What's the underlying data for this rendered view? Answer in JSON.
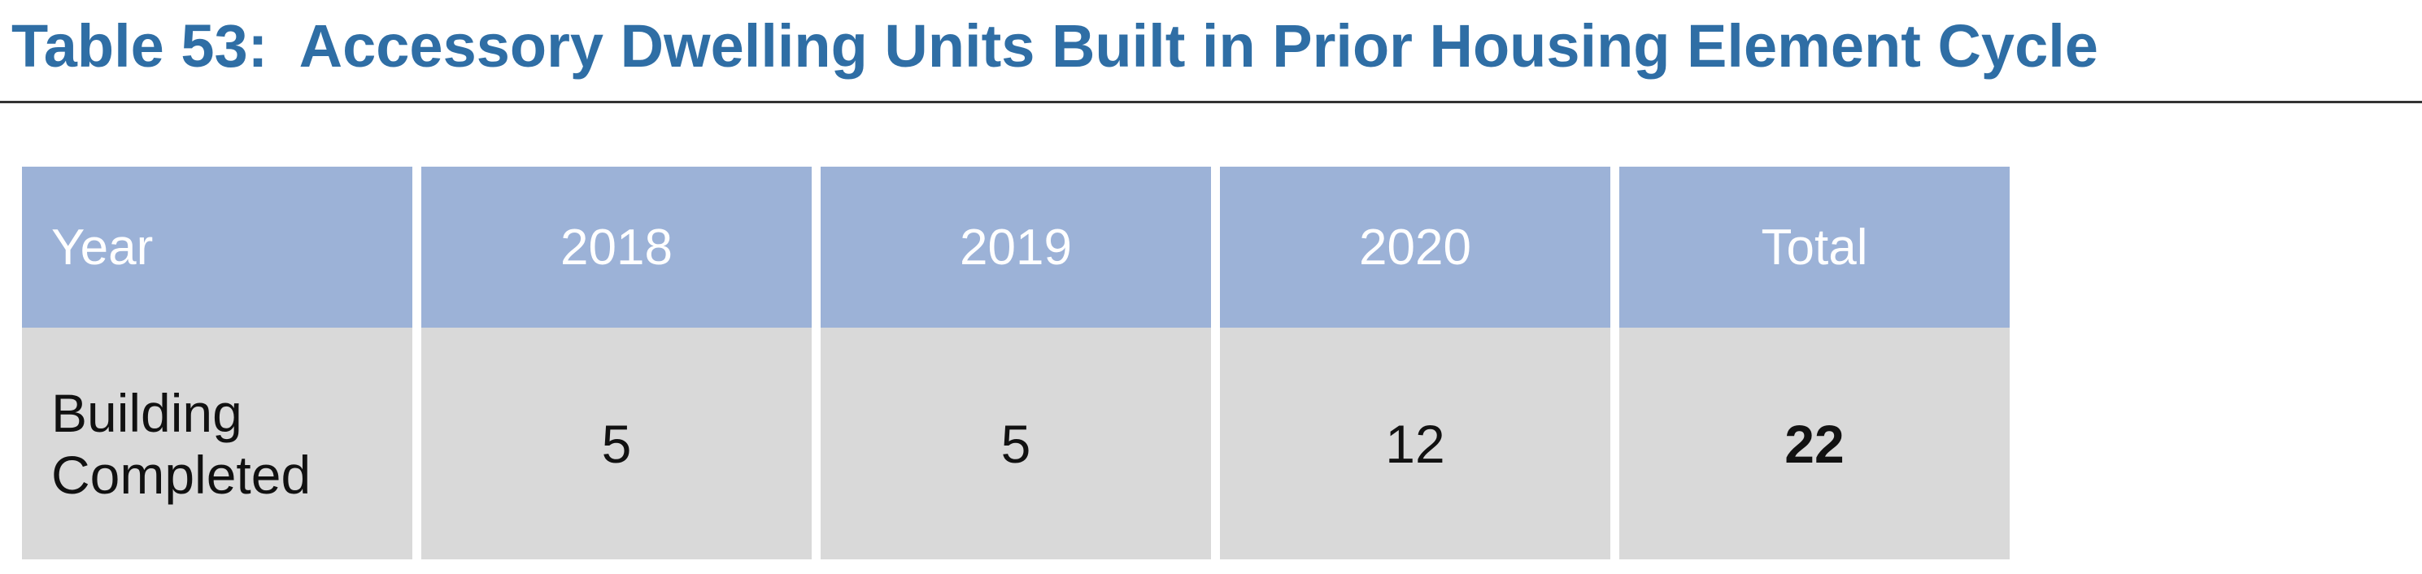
{
  "title": "Table 53:  Accessory Dwelling Units Built in Prior Housing Element Cycle",
  "table": {
    "header": [
      "Year",
      "2018",
      "2019",
      "2020",
      "Total"
    ],
    "rows": [
      [
        "Building Completed",
        5,
        5,
        12,
        22
      ]
    ]
  }
}
